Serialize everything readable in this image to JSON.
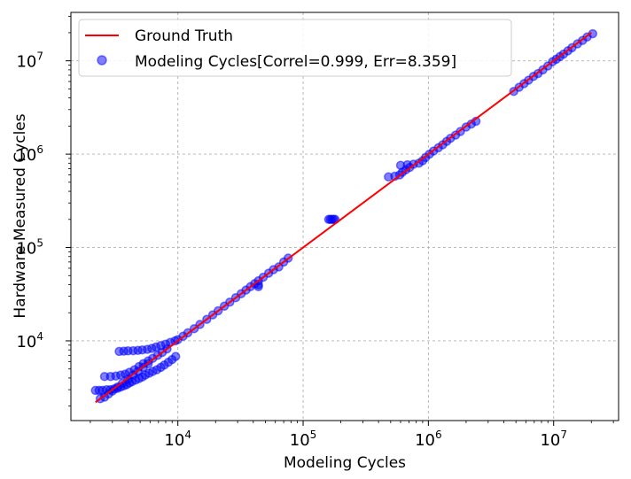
{
  "chart_data": {
    "type": "scatter",
    "x_scale": "log",
    "y_scale": "log",
    "xlabel": "Modeling Cycles",
    "ylabel": "Hardware Measured Cycles",
    "xlim": [
      1400,
      33000000
    ],
    "ylim": [
      1400,
      33000000
    ],
    "x_ticks": [
      10000,
      100000,
      1000000,
      10000000
    ],
    "y_ticks": [
      10000,
      100000,
      1000000,
      10000000
    ],
    "x_tick_labels": [
      {
        "base": "10",
        "exp": "4"
      },
      {
        "base": "10",
        "exp": "5"
      },
      {
        "base": "10",
        "exp": "6"
      },
      {
        "base": "10",
        "exp": "7"
      }
    ],
    "y_tick_labels": [
      {
        "base": "10",
        "exp": "4"
      },
      {
        "base": "10",
        "exp": "5"
      },
      {
        "base": "10",
        "exp": "6"
      },
      {
        "base": "10",
        "exp": "7"
      }
    ],
    "grid": true,
    "legend_position": "top-left",
    "series": [
      {
        "name": "Ground Truth",
        "kind": "line",
        "color": "#ff0000",
        "points": [
          [
            2200,
            2200
          ],
          [
            20000000,
            20000000
          ]
        ]
      },
      {
        "name": "Modeling Cycles[Correl=0.999, Err=8.359]",
        "kind": "scatter",
        "color": "#0000ff",
        "points": [
          [
            2200,
            2950
          ],
          [
            2350,
            2950
          ],
          [
            2500,
            2950
          ],
          [
            2700,
            3000
          ],
          [
            2900,
            3000
          ],
          [
            3100,
            3050
          ],
          [
            3300,
            3100
          ],
          [
            3500,
            3200
          ],
          [
            3700,
            3300
          ],
          [
            3900,
            3400
          ],
          [
            4100,
            3550
          ],
          [
            4300,
            3650
          ],
          [
            4600,
            3800
          ],
          [
            4900,
            3950
          ],
          [
            5200,
            4100
          ],
          [
            5500,
            4300
          ],
          [
            5900,
            4500
          ],
          [
            6300,
            4700
          ],
          [
            6800,
            4900
          ],
          [
            7300,
            5200
          ],
          [
            7800,
            5500
          ],
          [
            8400,
            5900
          ],
          [
            9000,
            6300
          ],
          [
            9600,
            6800
          ],
          [
            2600,
            4150
          ],
          [
            2900,
            4150
          ],
          [
            3200,
            4200
          ],
          [
            3500,
            4300
          ],
          [
            3800,
            4400
          ],
          [
            4100,
            4600
          ],
          [
            4500,
            4900
          ],
          [
            4900,
            5300
          ],
          [
            5300,
            5700
          ],
          [
            5800,
            6100
          ],
          [
            6300,
            6500
          ],
          [
            6900,
            7000
          ],
          [
            7500,
            7500
          ],
          [
            8200,
            8200
          ],
          [
            3400,
            7700
          ],
          [
            3700,
            7750
          ],
          [
            4000,
            7800
          ],
          [
            4400,
            7850
          ],
          [
            4800,
            7900
          ],
          [
            5200,
            8000
          ],
          [
            5700,
            8100
          ],
          [
            6200,
            8300
          ],
          [
            6700,
            8600
          ],
          [
            7300,
            8900
          ],
          [
            8000,
            9200
          ],
          [
            8700,
            9600
          ],
          [
            9500,
            10000
          ],
          [
            2400,
            2400
          ],
          [
            2600,
            2500
          ],
          [
            2800,
            2700
          ],
          [
            3000,
            2900
          ],
          [
            3300,
            3200
          ],
          [
            3600,
            3500
          ],
          [
            4000,
            3900
          ],
          [
            4400,
            4300
          ],
          [
            4800,
            4700
          ],
          [
            5300,
            5200
          ],
          [
            5800,
            5700
          ],
          [
            10000,
            10300
          ],
          [
            11000,
            11200
          ],
          [
            12000,
            12200
          ],
          [
            13500,
            13500
          ],
          [
            15000,
            15000
          ],
          [
            17000,
            17000
          ],
          [
            19000,
            19000
          ],
          [
            21000,
            21000
          ],
          [
            23500,
            23500
          ],
          [
            26000,
            26000
          ],
          [
            29000,
            29000
          ],
          [
            32000,
            32000
          ],
          [
            35000,
            35000
          ],
          [
            38000,
            38000
          ],
          [
            41000,
            41000
          ],
          [
            44000,
            44000
          ],
          [
            44000,
            38000
          ],
          [
            44000,
            40000
          ],
          [
            48000,
            48000
          ],
          [
            53000,
            53000
          ],
          [
            58000,
            58000
          ],
          [
            64000,
            62000
          ],
          [
            70000,
            70000
          ],
          [
            76000,
            77000
          ],
          [
            160000,
            200000
          ],
          [
            165000,
            200000
          ],
          [
            170000,
            200000
          ],
          [
            175000,
            200000
          ],
          [
            180000,
            200000
          ],
          [
            480000,
            570000
          ],
          [
            540000,
            580000
          ],
          [
            590000,
            600000
          ],
          [
            620000,
            640000
          ],
          [
            660000,
            680000
          ],
          [
            710000,
            720000
          ],
          [
            600000,
            760000
          ],
          [
            680000,
            770000
          ],
          [
            760000,
            780000
          ],
          [
            840000,
            800000
          ],
          [
            900000,
            850000
          ],
          [
            950000,
            920000
          ],
          [
            1020000,
            1000000
          ],
          [
            1100000,
            1080000
          ],
          [
            1200000,
            1170000
          ],
          [
            1300000,
            1260000
          ],
          [
            1400000,
            1370000
          ],
          [
            1500000,
            1480000
          ],
          [
            1650000,
            1600000
          ],
          [
            1800000,
            1750000
          ],
          [
            2000000,
            1950000
          ],
          [
            2200000,
            2100000
          ],
          [
            2400000,
            2250000
          ],
          [
            4800000,
            4700000
          ],
          [
            5300000,
            5200000
          ],
          [
            5800000,
            5700000
          ],
          [
            6300000,
            6200000
          ],
          [
            6900000,
            6800000
          ],
          [
            7500000,
            7300000
          ],
          [
            8200000,
            8000000
          ],
          [
            9000000,
            8800000
          ],
          [
            9800000,
            9800000
          ],
          [
            10500000,
            10400000
          ],
          [
            11200000,
            11100000
          ],
          [
            12000000,
            11800000
          ],
          [
            13000000,
            12800000
          ],
          [
            14000000,
            13800000
          ],
          [
            15500000,
            15200000
          ],
          [
            17000000,
            16500000
          ],
          [
            18500000,
            18000000
          ],
          [
            20500000,
            19500000
          ]
        ]
      }
    ]
  }
}
